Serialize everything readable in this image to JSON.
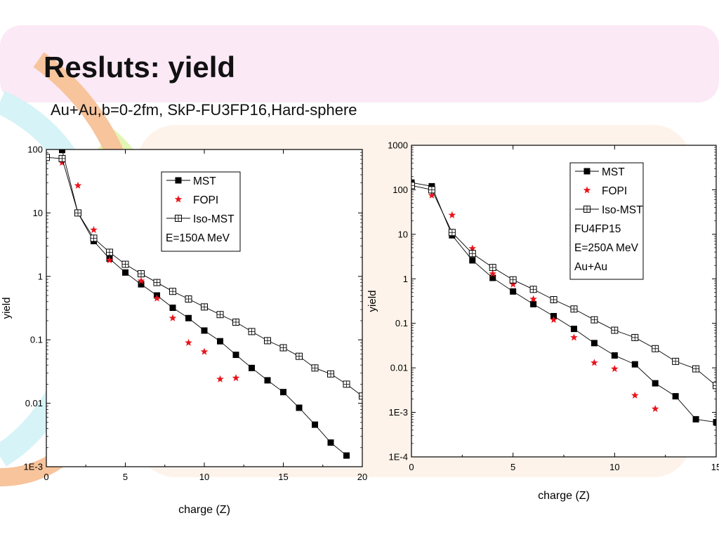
{
  "slide": {
    "title": "Resluts: yield",
    "subtitle": "Au+Au,b=0-2fm, SkP-FU3FP16,Hard-sphere"
  },
  "colors": {
    "fopi": "#e8141c",
    "line": "#000000",
    "pink_band": "#fbe9f6",
    "peach": "#fdf3ea",
    "orange": "#f7b98a",
    "lime": "#d8f2a0",
    "cyan": "#d6f3f7"
  },
  "chart_data": [
    {
      "type": "scatter",
      "title": "",
      "xlabel": "charge (Z)",
      "ylabel": "yield",
      "xlim": [
        0,
        20
      ],
      "ylim": [
        0.001,
        100
      ],
      "yscale": "log",
      "grid": false,
      "legend_position": "top-right",
      "xticks": [
        0,
        5,
        10,
        15,
        20
      ],
      "xtick_labels": [
        "0",
        "5",
        "10",
        "15",
        "20"
      ],
      "yticks": [
        0.001,
        0.01,
        0.1,
        1,
        10,
        100
      ],
      "ytick_labels": [
        "1E-3",
        "0.01",
        "0.1",
        "1",
        "10",
        "100"
      ],
      "legend": [
        "MST",
        "FOPI",
        "Iso-MST",
        "E=150A MeV"
      ],
      "series": [
        {
          "name": "MST",
          "marker": "filled-square",
          "line": true,
          "x": [
            0,
            1,
            2,
            3,
            4,
            5,
            6,
            7,
            8,
            9,
            10,
            11,
            12,
            13,
            14,
            15,
            16,
            17,
            18,
            19
          ],
          "y": [
            120,
            98,
            10,
            3.6,
            1.9,
            1.15,
            0.75,
            0.5,
            0.32,
            0.22,
            0.14,
            0.095,
            0.058,
            0.036,
            0.023,
            0.015,
            0.0085,
            0.0046,
            0.0024,
            0.0015
          ]
        },
        {
          "name": "FOPI",
          "marker": "star",
          "line": false,
          "x": [
            1,
            2,
            3,
            4,
            6,
            7,
            8,
            9,
            10,
            11,
            12
          ],
          "y": [
            62,
            27,
            5.4,
            1.8,
            0.85,
            0.45,
            0.22,
            0.09,
            0.065,
            0.024,
            0.025
          ]
        },
        {
          "name": "Iso-MST",
          "marker": "open-square-cross",
          "line": true,
          "x": [
            0,
            1,
            2,
            3,
            4,
            5,
            6,
            7,
            8,
            9,
            10,
            11,
            12,
            13,
            14,
            15,
            16,
            17,
            18,
            19,
            20
          ],
          "y": [
            75,
            72,
            10,
            4,
            2.4,
            1.55,
            1.1,
            0.8,
            0.58,
            0.44,
            0.33,
            0.25,
            0.19,
            0.135,
            0.097,
            0.075,
            0.055,
            0.036,
            0.029,
            0.02,
            0.013
          ]
        }
      ]
    },
    {
      "type": "scatter",
      "title": "",
      "xlabel": "charge (Z)",
      "ylabel": "yield",
      "xlim": [
        0,
        15
      ],
      "ylim": [
        0.0001,
        1000
      ],
      "yscale": "log",
      "grid": false,
      "legend_position": "top-right",
      "xticks": [
        0,
        5,
        10,
        15
      ],
      "xtick_labels": [
        "0",
        "5",
        "10",
        "15"
      ],
      "yticks": [
        0.0001,
        0.001,
        0.01,
        0.1,
        1,
        10,
        100,
        1000
      ],
      "ytick_labels": [
        "1E-4",
        "1E-3",
        "0.01",
        "0.1",
        "1",
        "10",
        "100",
        "1000"
      ],
      "legend": [
        "MST",
        "FOPI",
        "Iso-MST",
        "FU4FP15",
        "E=250A MeV",
        "Au+Au"
      ],
      "series": [
        {
          "name": "MST",
          "marker": "filled-square",
          "line": true,
          "x": [
            0,
            1,
            2,
            3,
            4,
            5,
            6,
            7,
            8,
            9,
            10,
            11,
            12,
            13,
            14,
            15
          ],
          "y": [
            145,
            120,
            9.5,
            2.6,
            1.05,
            0.52,
            0.27,
            0.145,
            0.075,
            0.036,
            0.019,
            0.012,
            0.0045,
            0.0023,
            0.0007,
            0.0006
          ]
        },
        {
          "name": "FOPI",
          "marker": "star",
          "line": false,
          "x": [
            1,
            2,
            3,
            4,
            5,
            6,
            7,
            8,
            9,
            10,
            11,
            12
          ],
          "y": [
            75,
            27,
            4.8,
            1.3,
            0.75,
            0.35,
            0.12,
            0.048,
            0.013,
            0.0095,
            0.0024,
            0.0012
          ]
        },
        {
          "name": "Iso-MST",
          "marker": "open-square-cross",
          "line": true,
          "x": [
            0,
            1,
            2,
            3,
            4,
            5,
            6,
            7,
            8,
            9,
            10,
            11,
            12,
            13,
            14,
            15
          ],
          "y": [
            125,
            100,
            11,
            3.7,
            1.8,
            0.95,
            0.58,
            0.34,
            0.21,
            0.12,
            0.07,
            0.048,
            0.027,
            0.014,
            0.0095,
            0.004
          ]
        }
      ]
    }
  ]
}
